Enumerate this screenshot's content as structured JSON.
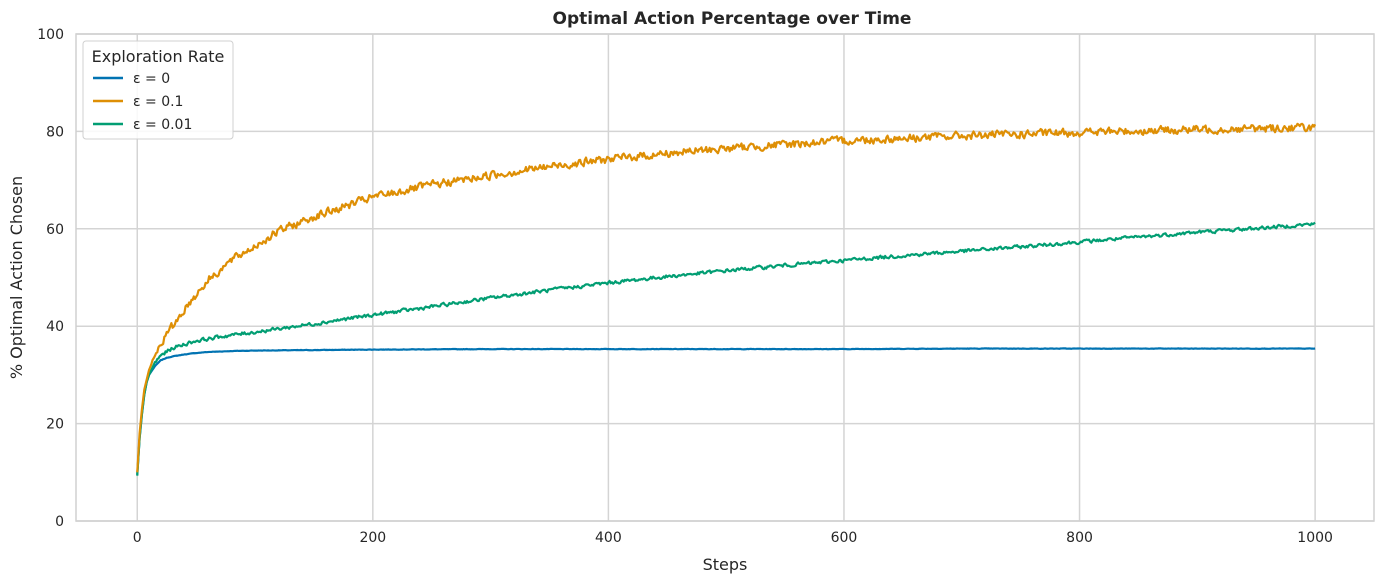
{
  "chart_data": {
    "type": "line",
    "title": "Optimal Action Percentage over Time",
    "xlabel": "Steps",
    "ylabel": "% Optimal Action Chosen",
    "xlim": [
      -52,
      1050
    ],
    "ylim": [
      0,
      100
    ],
    "xticks": [
      0,
      200,
      400,
      600,
      800,
      1000
    ],
    "yticks": [
      0,
      20,
      40,
      60,
      80,
      100
    ],
    "grid": true,
    "legend": {
      "title": "Exploration Rate",
      "placement": "top-left"
    },
    "series": [
      {
        "name": "ε = 0",
        "color": "#0173b2",
        "x": [
          0,
          2,
          4,
          6,
          8,
          10,
          15,
          20,
          25,
          30,
          40,
          50,
          60,
          80,
          100,
          150,
          200,
          300,
          400,
          500,
          600,
          700,
          800,
          900,
          1000
        ],
        "values": [
          9.5,
          17,
          22,
          26,
          28.5,
          30,
          31.8,
          33,
          33.5,
          33.8,
          34.2,
          34.5,
          34.7,
          34.9,
          35.0,
          35.1,
          35.2,
          35.3,
          35.3,
          35.3,
          35.3,
          35.4,
          35.4,
          35.4,
          35.4
        ]
      },
      {
        "name": "ε = 0.1",
        "color": "#de8f05",
        "x": [
          0,
          2,
          4,
          6,
          8,
          10,
          15,
          20,
          30,
          40,
          50,
          60,
          80,
          100,
          120,
          150,
          200,
          250,
          300,
          350,
          400,
          450,
          500,
          550,
          600,
          650,
          700,
          750,
          800,
          850,
          900,
          950,
          1000
        ],
        "values": [
          10,
          18,
          23,
          27,
          29,
          31,
          34,
          36.5,
          40,
          43.5,
          46.5,
          49.5,
          53.5,
          56.5,
          59.5,
          62.5,
          66.5,
          69,
          71,
          72.8,
          74.3,
          75.5,
          76.5,
          77.3,
          78.1,
          78.6,
          79.1,
          79.4,
          79.8,
          80.1,
          80.4,
          80.6,
          80.9
        ]
      },
      {
        "name": "ε = 0.01",
        "color": "#029e73",
        "x": [
          0,
          2,
          4,
          6,
          8,
          10,
          15,
          20,
          30,
          40,
          50,
          75,
          100,
          150,
          200,
          250,
          300,
          350,
          400,
          450,
          500,
          550,
          600,
          650,
          700,
          750,
          800,
          850,
          900,
          950,
          1000
        ],
        "values": [
          9.3,
          17,
          22,
          26,
          28.5,
          30,
          32.5,
          34,
          35.5,
          36.3,
          37,
          38,
          38.8,
          40.5,
          42.3,
          44,
          45.8,
          47.4,
          48.9,
          50.2,
          51.4,
          52.5,
          53.5,
          54.5,
          55.4,
          56.3,
          57.3,
          58.3,
          59.3,
          60.1,
          61.0
        ]
      }
    ]
  }
}
